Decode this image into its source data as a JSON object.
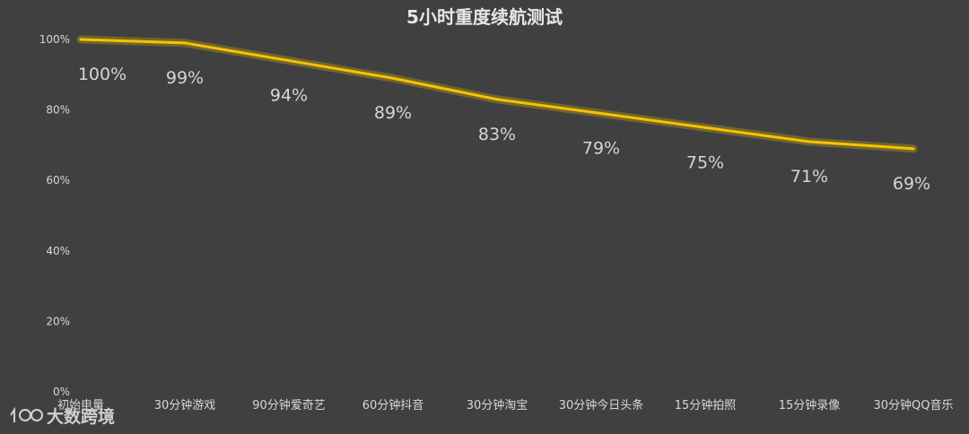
{
  "chart_data": {
    "type": "line",
    "title": "5小时重度续航测试",
    "categories": [
      "初始电量",
      "30分钟游戏",
      "90分钟爱奇艺",
      "60分钟抖音",
      "30分钟淘宝",
      "30分钟今日头条",
      "15分钟拍照",
      "15分钟录像",
      "30分钟QQ音乐"
    ],
    "series": [
      {
        "values": [
          100,
          99,
          94,
          89,
          83,
          79,
          75,
          71,
          69
        ],
        "labels": [
          "100%",
          "99%",
          "94%",
          "89%",
          "83%",
          "79%",
          "75%",
          "71%",
          "69%"
        ]
      }
    ],
    "ylim": [
      0,
      100
    ],
    "yticks": [
      "0%",
      "20%",
      "40%",
      "60%",
      "80%",
      "100%"
    ],
    "ytick_values": [
      0,
      20,
      40,
      60,
      80,
      100
    ],
    "grid": false,
    "line_color": "#f5c400"
  },
  "watermark": {
    "icon": "e-logo-icon",
    "text": "大数跨境"
  }
}
